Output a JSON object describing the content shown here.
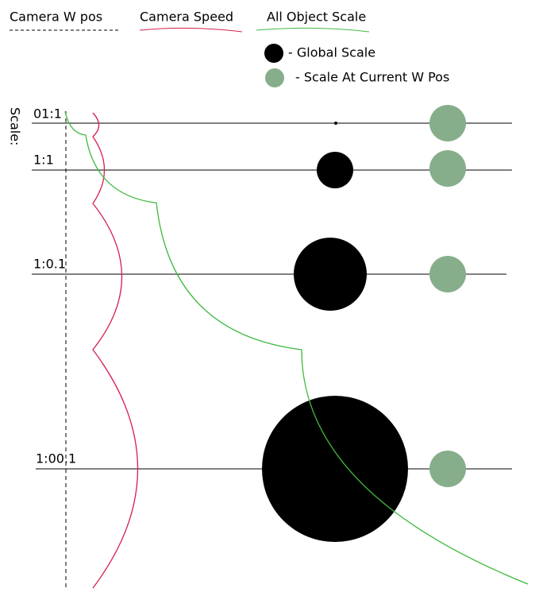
{
  "legend": {
    "camera_w_pos": "Camera W pos",
    "camera_speed": "Camera Speed",
    "all_object_scale": "All Object Scale",
    "global_scale": "- Global Scale",
    "scale_at_current": "- Scale At Current W Pos"
  },
  "axis_label": "Scale:",
  "rows": [
    "01:1",
    "1:1",
    "1:0.1",
    "1:00.1"
  ]
}
